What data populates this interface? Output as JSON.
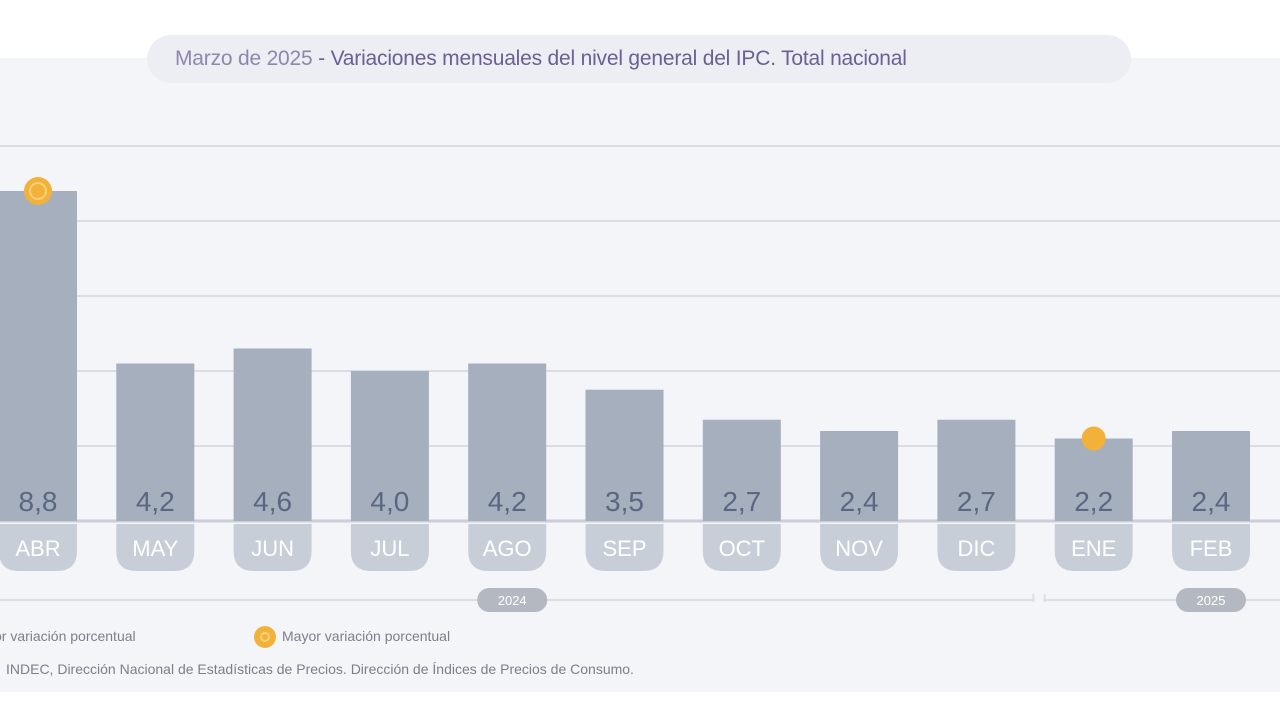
{
  "title": {
    "period": "Marzo de 2025",
    "separator": " - ",
    "main": "Variaciones mensuales del nivel general del IPC. Total nacional"
  },
  "chart_data": {
    "type": "bar",
    "categories": [
      "ABR",
      "MAY",
      "JUN",
      "JUL",
      "AGO",
      "SEP",
      "OCT",
      "NOV",
      "DIC",
      "ENE",
      "FEB"
    ],
    "values": [
      8.8,
      4.2,
      4.6,
      4.0,
      4.2,
      3.5,
      2.7,
      2.4,
      2.7,
      2.2,
      2.4
    ],
    "value_labels": [
      "8,8",
      "4,2",
      "4,6",
      "4,0",
      "4,2",
      "3,5",
      "2,7",
      "2,4",
      "2,7",
      "2,2",
      "2,4"
    ],
    "ylim": [
      0,
      10
    ],
    "grid": true,
    "highlight": {
      "max_category": "ABR",
      "min_category": "ENE"
    },
    "year_groups": [
      {
        "label": "2024",
        "categories": [
          "ABR",
          "MAY",
          "JUN",
          "JUL",
          "AGO",
          "SEP",
          "OCT",
          "NOV",
          "DIC"
        ]
      },
      {
        "label": "2025",
        "categories": [
          "ENE",
          "FEB"
        ]
      }
    ],
    "colors": {
      "bar": "#a5afbe",
      "category_pill": "#c8ced8",
      "highlight": "#f2b23a",
      "grid": "#dadde4",
      "baseline": "#c9ced8",
      "year_pill": "#b4b8c0"
    }
  },
  "legend": {
    "min_label": "or variación porcentual",
    "max_label": "Mayor variación porcentual"
  },
  "source": "INDEC, Dirección Nacional de Estadísticas de Precios. Dirección de Índices de Precios de Consumo."
}
